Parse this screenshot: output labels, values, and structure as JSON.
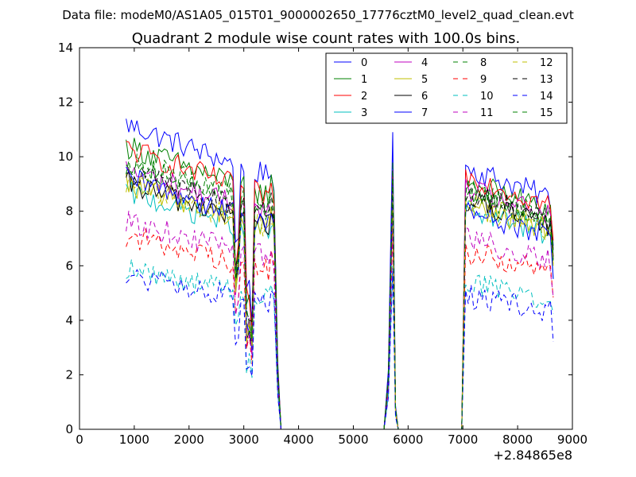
{
  "chart_data": {
    "type": "line",
    "suptitle": "Data file: modeM0/AS1A05_015T01_9000002650_17776cztM0_level2_quad_clean.evt",
    "title": "Quadrant 2 module wise count rates with 100.0s bins.",
    "xlabel": "",
    "ylabel": "",
    "x_offset_label": "+2.84865e8",
    "xlim": [
      0,
      9000
    ],
    "ylim": [
      0,
      14
    ],
    "x_ticks": [
      0,
      1000,
      2000,
      3000,
      4000,
      5000,
      6000,
      7000,
      8000,
      9000
    ],
    "y_ticks": [
      0,
      2,
      4,
      6,
      8,
      10,
      12,
      14
    ],
    "grid": false,
    "legend_location": "top-right",
    "legend_columns": 4,
    "x": {
      "seg1_start": 850,
      "seg1_end": 3550,
      "seg1_tail": [
        3620,
        3680
      ],
      "gap1_end": 5560,
      "seg2": [
        5560,
        5640,
        5720,
        5770,
        5820,
        5860
      ],
      "gap2_end": 6980,
      "seg3_start": 7050,
      "seg3_end": 8650,
      "step": 50
    },
    "series": [
      {
        "name": "0",
        "color": "#0000ff",
        "dash": "solid",
        "base1": 11.2,
        "base3": 9.6,
        "spike": 10.9
      },
      {
        "name": "1",
        "color": "#008000",
        "dash": "solid",
        "base1": 10.4,
        "base3": 9.1,
        "spike": 9.4
      },
      {
        "name": "2",
        "color": "#ff0000",
        "dash": "solid",
        "base1": 10.3,
        "base3": 9.3,
        "spike": 9.5
      },
      {
        "name": "3",
        "color": "#00bfbf",
        "dash": "solid",
        "base1": 8.7,
        "base3": 8.1,
        "spike": 8.2
      },
      {
        "name": "4",
        "color": "#bf00bf",
        "dash": "solid",
        "base1": 9.5,
        "base3": 8.8,
        "spike": 9.0
      },
      {
        "name": "5",
        "color": "#bfbf00",
        "dash": "solid",
        "base1": 9.0,
        "base3": 8.3,
        "spike": 8.6
      },
      {
        "name": "6",
        "color": "#000000",
        "dash": "solid",
        "base1": 9.0,
        "base3": 8.4,
        "spike": 8.8
      },
      {
        "name": "7",
        "color": "#0000ff",
        "dash": "solid",
        "base1": 9.2,
        "base3": 8.0,
        "spike": 9.2
      },
      {
        "name": "8",
        "color": "#008000",
        "dash": "dashed",
        "base1": 9.8,
        "base3": 8.6,
        "spike": 9.1
      },
      {
        "name": "9",
        "color": "#ff0000",
        "dash": "dashed",
        "base1": 7.1,
        "base3": 6.5,
        "spike": 7.2
      },
      {
        "name": "10",
        "color": "#00bfbf",
        "dash": "dashed",
        "base1": 5.9,
        "base3": 5.4,
        "spike": 6.0
      },
      {
        "name": "11",
        "color": "#bf00bf",
        "dash": "dashed",
        "base1": 7.6,
        "base3": 7.0,
        "spike": 7.6
      },
      {
        "name": "12",
        "color": "#bfbf00",
        "dash": "dashed",
        "base1": 9.0,
        "base3": 8.3,
        "spike": 8.7
      },
      {
        "name": "13",
        "color": "#000000",
        "dash": "dashed",
        "base1": 9.5,
        "base3": 8.7,
        "spike": 9.2
      },
      {
        "name": "14",
        "color": "#0000ff",
        "dash": "dashed",
        "base1": 5.6,
        "base3": 4.9,
        "spike": 5.8
      },
      {
        "name": "15",
        "color": "#008000",
        "dash": "dashed",
        "base1": 9.9,
        "base3": 8.8,
        "spike": 9.8
      }
    ]
  }
}
